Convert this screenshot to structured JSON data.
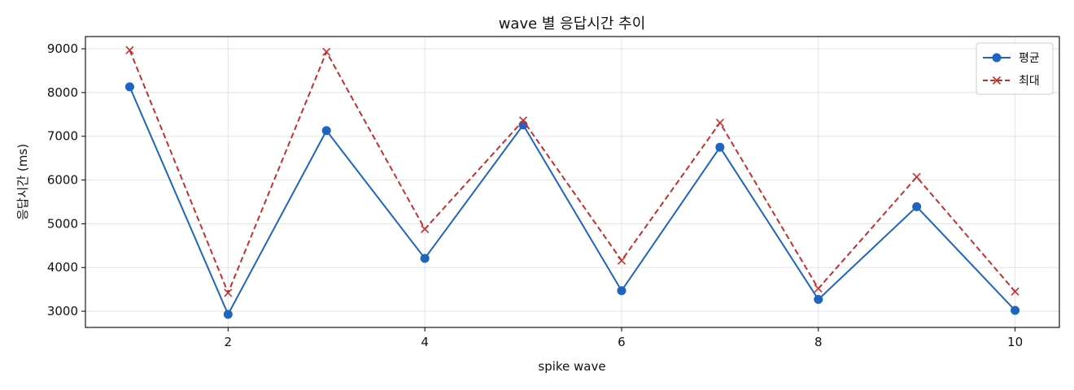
{
  "chart_data": {
    "type": "line",
    "title": "wave 별 응답시간 추이",
    "xlabel": "spike wave",
    "ylabel": "응답시간 (ms)",
    "x": [
      1,
      2,
      3,
      4,
      5,
      6,
      7,
      8,
      9,
      10
    ],
    "xlim": [
      0.55,
      10.45
    ],
    "ylim": [
      2630,
      9280
    ],
    "xticks": [
      2,
      4,
      6,
      8,
      10
    ],
    "yticks": [
      3000,
      4000,
      5000,
      6000,
      7000,
      8000,
      9000
    ],
    "grid": true,
    "legend_position": "top-right",
    "series": [
      {
        "name": "평균",
        "color": "#1f64c0",
        "style": "solid",
        "marker": "circle",
        "values": [
          8130,
          2930,
          7130,
          4210,
          7260,
          3470,
          6750,
          3270,
          5390,
          3020
        ]
      },
      {
        "name": "최대",
        "color": "#c62f2f",
        "style": "dashed",
        "marker": "x",
        "values": [
          8970,
          3420,
          8930,
          4880,
          7360,
          4160,
          7310,
          3520,
          6070,
          3450
        ]
      }
    ]
  }
}
